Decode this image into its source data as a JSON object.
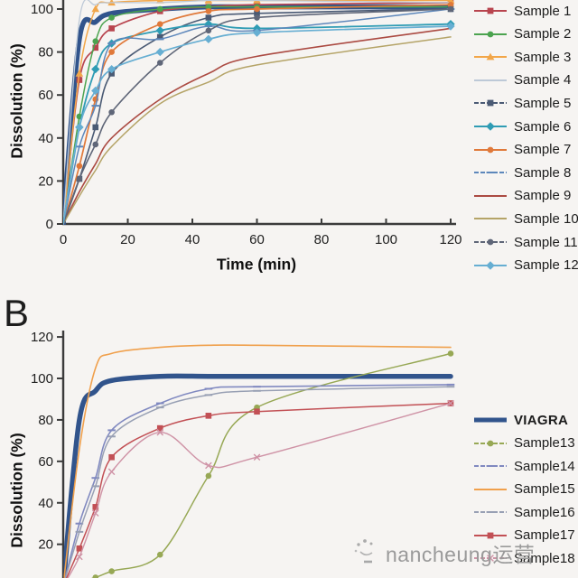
{
  "page": {
    "background": "#f6f4f2",
    "text_color": "#1f1f1f",
    "axis_color": "#3b3b3b",
    "watermark": {
      "text": "nancheung运营",
      "icon": "scribble-logo",
      "color": "#9a9a9a"
    }
  },
  "chart_data": [
    {
      "id": "A",
      "panel_label": "",
      "type": "line",
      "title": "",
      "xlabel": "Time (min)",
      "ylabel": "Dissolution (%)",
      "x": [
        0,
        5,
        10,
        15,
        30,
        45,
        60,
        120
      ],
      "x_ticks": [
        0,
        20,
        40,
        60,
        80,
        100,
        120
      ],
      "y_ticks": [
        0,
        20,
        40,
        60,
        80,
        100
      ],
      "xlim": [
        0,
        120
      ],
      "ylim": [
        0,
        104
      ],
      "grid": false,
      "legend_position": "right",
      "note": "top of panel (and its panel letter / thick-line legend entry) cropped at image top",
      "series": [
        {
          "label": "VIAGRA",
          "color": "#31548c",
          "width": 5.5,
          "marker": "none",
          "dash": false,
          "in_legend": false,
          "values": [
            0,
            86,
            94,
            98,
            100,
            101,
            101,
            101
          ]
        },
        {
          "label": "Sample 1",
          "color": "#b8444e",
          "width": 1.7,
          "marker": "square",
          "dash": false,
          "in_legend": true,
          "values": [
            0,
            67,
            82,
            91,
            99,
            101,
            102,
            103
          ]
        },
        {
          "label": "Sample 2",
          "color": "#4ba34f",
          "width": 1.5,
          "marker": "circle",
          "dash": false,
          "in_legend": true,
          "values": [
            0,
            50,
            85,
            96,
            100,
            101,
            101,
            101
          ]
        },
        {
          "label": "Sample 3",
          "color": "#f2a649",
          "width": 1.5,
          "marker": "triangle",
          "dash": false,
          "in_legend": true,
          "values": [
            0,
            70,
            100,
            103,
            104,
            104,
            104,
            104
          ]
        },
        {
          "label": "Sample 4",
          "color": "#bdc9d7",
          "width": 1.3,
          "marker": "none",
          "dash": false,
          "in_legend": true,
          "values": [
            0,
            95,
            102,
            103,
            103,
            104,
            104,
            103
          ]
        },
        {
          "label": "Sample 5",
          "color": "#4a5a74",
          "width": 1.6,
          "marker": "square",
          "dash": true,
          "in_legend": true,
          "values": [
            0,
            21,
            45,
            70,
            87,
            96,
            98,
            100
          ]
        },
        {
          "label": "Sample 6",
          "color": "#2f9cb4",
          "width": 1.8,
          "marker": "diamond",
          "dash": false,
          "in_legend": true,
          "values": [
            0,
            45,
            72,
            84,
            90,
            93,
            91,
            93
          ]
        },
        {
          "label": "Sample 7",
          "color": "#e0793a",
          "width": 1.7,
          "marker": "circle",
          "dash": false,
          "in_legend": true,
          "values": [
            0,
            27,
            58,
            80,
            93,
            99,
            100,
            102
          ]
        },
        {
          "label": "Sample 8",
          "color": "#5d87bb",
          "width": 1.5,
          "marker": "tick",
          "dash": true,
          "in_legend": true,
          "values": [
            0,
            36,
            55,
            84,
            86,
            92,
            90,
            100
          ]
        },
        {
          "label": "Sample 9",
          "color": "#ab4a42",
          "width": 1.6,
          "marker": "none",
          "dash": false,
          "in_legend": true,
          "values": [
            0,
            15,
            28,
            40,
            58,
            70,
            78,
            91
          ]
        },
        {
          "label": "Sample 10",
          "color": "#b5a468",
          "width": 1.5,
          "marker": "none",
          "dash": false,
          "in_legend": true,
          "values": [
            0,
            13,
            25,
            36,
            56,
            66,
            74,
            87
          ]
        },
        {
          "label": "Sample 11",
          "color": "#5f6678",
          "width": 1.6,
          "marker": "circle",
          "dash": true,
          "in_legend": true,
          "values": [
            0,
            21,
            37,
            52,
            75,
            90,
            96,
            100
          ]
        },
        {
          "label": "Sample 12",
          "color": "#66aed2",
          "width": 1.7,
          "marker": "diamond",
          "dash": false,
          "in_legend": true,
          "values": [
            0,
            45,
            62,
            72,
            80,
            86,
            89,
            92
          ]
        }
      ]
    },
    {
      "id": "B",
      "panel_label": "B",
      "type": "line",
      "title": "",
      "xlabel": "",
      "ylabel": "Dissolution (%)",
      "x": [
        0,
        5,
        10,
        15,
        30,
        45,
        60,
        120
      ],
      "x_ticks": [],
      "y_ticks": [
        20,
        40,
        60,
        80,
        100,
        120
      ],
      "xlim": [
        0,
        120
      ],
      "ylim": [
        0,
        120
      ],
      "grid": false,
      "legend_position": "right",
      "note": "bottom of panel (x-axis and its labels) cropped at image bottom",
      "series": [
        {
          "label": "VIAGRA",
          "color": "#31548c",
          "width": 5.5,
          "marker": "none",
          "dash": false,
          "in_legend": true,
          "values": [
            0,
            80,
            94,
            99,
            101,
            101,
            101,
            101
          ]
        },
        {
          "label": "Sample13",
          "color": "#97a855",
          "width": 1.5,
          "marker": "circle",
          "dash": true,
          "in_legend": true,
          "values": [
            0,
            2,
            4,
            7,
            15,
            53,
            86,
            112
          ]
        },
        {
          "label": "Sample14",
          "color": "#8089c0",
          "width": 1.6,
          "marker": "tick",
          "dash": true,
          "in_legend": true,
          "values": [
            0,
            30,
            52,
            75,
            88,
            95,
            96,
            97
          ]
        },
        {
          "label": "Sample15",
          "color": "#f0a04c",
          "width": 1.6,
          "marker": "none",
          "dash": false,
          "in_legend": true,
          "values": [
            0,
            66,
            105,
            112,
            115,
            116,
            116,
            115
          ]
        },
        {
          "label": "Sample16",
          "color": "#98a0b4",
          "width": 1.5,
          "marker": "tick",
          "dash": true,
          "in_legend": true,
          "values": [
            0,
            26,
            48,
            72,
            86,
            92,
            94,
            96
          ]
        },
        {
          "label": "Sample17",
          "color": "#c25055",
          "width": 1.5,
          "marker": "square",
          "dash": false,
          "in_legend": true,
          "values": [
            0,
            18,
            38,
            62,
            76,
            82,
            84,
            88
          ]
        },
        {
          "label": "Sample18",
          "color": "#cf93a6",
          "width": 1.4,
          "marker": "cross",
          "dash": true,
          "in_legend": true,
          "values": [
            0,
            14,
            35,
            55,
            74,
            58,
            62,
            88
          ]
        }
      ]
    }
  ]
}
